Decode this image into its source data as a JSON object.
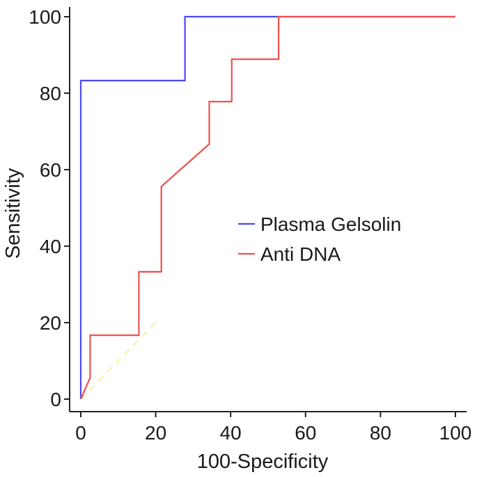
{
  "chart_data": {
    "type": "line",
    "title": "",
    "xlabel": "100-Specificity",
    "ylabel": "Sensitivity",
    "xlim": [
      0,
      100
    ],
    "ylim": [
      0,
      100
    ],
    "x_ticks": [
      0,
      20,
      40,
      60,
      80,
      100
    ],
    "y_ticks": [
      0,
      20,
      40,
      60,
      80,
      100
    ],
    "grid": false,
    "legend_position": "center-right",
    "reference_line": {
      "x": [
        0,
        20
      ],
      "y": [
        0,
        20
      ],
      "color": "#f3ea8a"
    },
    "series": [
      {
        "name": "Plasma Gelsolin",
        "color": "#4a4af0",
        "x": [
          0,
          0,
          27.8,
          27.8,
          100
        ],
        "y": [
          0,
          83.3,
          83.3,
          100,
          100
        ]
      },
      {
        "name": "Anti DNA",
        "color": "#f05050",
        "x": [
          0,
          2.5,
          2.5,
          15.5,
          15.5,
          21.5,
          21.5,
          34.3,
          34.3,
          40.3,
          40.3,
          52.8,
          52.8,
          100
        ],
        "y": [
          0,
          5.6,
          16.7,
          16.7,
          33.3,
          33.3,
          55.6,
          66.7,
          77.8,
          77.8,
          88.9,
          88.9,
          100,
          100
        ]
      }
    ]
  }
}
